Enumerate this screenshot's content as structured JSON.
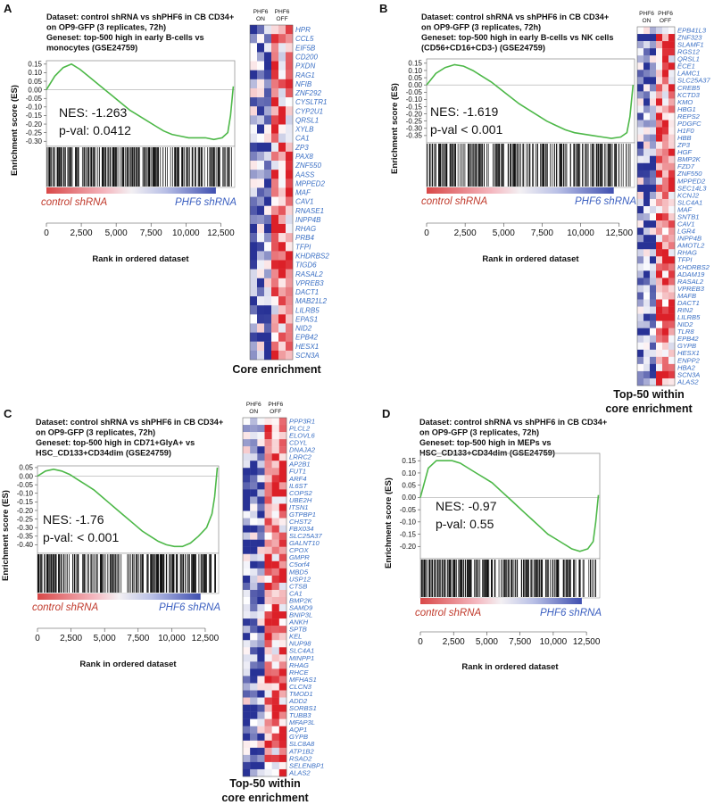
{
  "panels": [
    {
      "letter": "A",
      "title_lines": [
        "Dataset: control shRNA vs shPHF6 in CB CD34+",
        "on OP9-GFP (3 replicates, 72h)",
        "Geneset: top-500 high in early B-cells vs",
        "monocytes (GSE24759)"
      ],
      "ylabel": "Enrichment score (ES)",
      "xlabel": "Rank in ordered dataset",
      "nes_text": "NES: -1.263",
      "pval_text": "p-val: 0.0412",
      "left_label": "control shRNA",
      "right_label": "PHF6 shRNA",
      "heatmap_col_labels": [
        "PHF6\nON",
        "PHF6\nOFF"
      ],
      "heatmap_caption": [
        "Core enrichment"
      ],
      "genes": [
        "HPR",
        "CCL5",
        "EIF5B",
        "CD200",
        "PXDN",
        "RAG1",
        "NFIB",
        "ZNF292",
        "CYSLTR1",
        "CYP2U1",
        "QRSL1",
        "XYLB",
        "CA1",
        "ZP3",
        "PAX8",
        "ZNF550",
        "AASS",
        "MPPED2",
        "MAF",
        "CAV1",
        "RNASE1",
        "INPP4B",
        "RHAG",
        "PRB4",
        "TFPI",
        "KHDRBS2",
        "TIGD6",
        "RASAL2",
        "VPREB3",
        "DACT1",
        "MAB21L2",
        "LILRB5",
        "EPAS1",
        "NID2",
        "EPB42",
        "HESX1",
        "SCN3A"
      ]
    },
    {
      "letter": "B",
      "title_lines": [
        "Dataset: control shRNA vs shPHF6 in CB CD34+",
        "on OP9-GFP (3 replicates, 72h)",
        "Geneset: top-500 high in early B-cells vs NK cells",
        "(CD56+CD16+CD3-) (GSE24759)"
      ],
      "ylabel": "Enrichment score (ES)",
      "xlabel": "Rank in ordered dataset",
      "nes_text": "NES: -1.619",
      "pval_text": "p-val < 0.001",
      "left_label": "control shRNA",
      "right_label": "PHF6 shRNA",
      "heatmap_col_labels": [
        "PHF6\nON",
        "PHF6\nOFF"
      ],
      "heatmap_caption": [
        "Top-50 within",
        "core enrichment"
      ],
      "genes": [
        "EPB41L3",
        "ZNF323",
        "SLAMF1",
        "RGS12",
        "QRSL1",
        "ECE1",
        "LAMC1",
        "SLC25A37",
        "CREB5",
        "KCTD3",
        "KMO",
        "HBG1",
        "REPS2",
        "PDGFC",
        "H1F0",
        "HBB",
        "ZP3",
        "HGF",
        "BMP2K",
        "FZD7",
        "ZNF550",
        "MPPED2",
        "SEC14L3",
        "KCNJ2",
        "SLC4A1",
        "MAF",
        "SNTB1",
        "CAV1",
        "LGR4",
        "INPP4B",
        "AMOTL2",
        "RHAG",
        "TFPI",
        "KHDRBS2",
        "ADAM19",
        "RASAL2",
        "VPREB3",
        "MAFB",
        "DACT1",
        "RIN2",
        "LILRB5",
        "NID2",
        "TLR8",
        "EPB42",
        "GYPB",
        "HESX1",
        "ENPP2",
        "HBA2",
        "SCN3A",
        "ALAS2"
      ]
    },
    {
      "letter": "C",
      "title_lines": [
        "Dataset: control shRNA vs shPHF6 in CB CD34+",
        "on OP9-GFP (3 replicates, 72h)",
        "Geneset: top-500 high in CD71+GlyA+ vs",
        "HSC_CD133+CD34dim (GSE24759)"
      ],
      "ylabel": "Enrichment score (ES)",
      "xlabel": "Rank in ordered dataset",
      "nes_text": "NES: -1.76",
      "pval_text": "p-val: < 0.001",
      "left_label": "control shRNA",
      "right_label": "PHF6 shRNA",
      "heatmap_col_labels": [
        "PHF6\nON",
        "PHF6\nOFF"
      ],
      "heatmap_caption": [
        "Top-50 within",
        "core enrichment"
      ],
      "genes": [
        "PPP3R1",
        "PLCL2",
        "ELOVL6",
        "CDYL",
        "DNAJA2",
        "LRRC2",
        "AP2B1",
        "FUT1",
        "ARF4",
        "IL6ST",
        "COPS2",
        "UBE2H",
        "ITSN1",
        "GTPBP1",
        "CHST2",
        "FBX034",
        "SLC25A37",
        "GALNT10",
        "CPOX",
        "GMPR",
        "C5orf4",
        "MBD5",
        "USP12",
        "CTSB",
        "CA1",
        "BMP2K",
        "SAMD9",
        "BNIP3L",
        "ANKH",
        "SPTB",
        "KEL",
        "NUP98",
        "SLC4A1",
        "MINPP1",
        "RHAG",
        "RHCE",
        "MFHAS1",
        "CLCN3",
        "TMOD1",
        "ADD2",
        "SORBS1",
        "TUBB3",
        "MFAP3L",
        "AQP1",
        "GYPB",
        "SLC8A8",
        "ATP1B2",
        "RSAD2",
        "SELENBP1",
        "ALAS2"
      ]
    },
    {
      "letter": "D",
      "title_lines": [
        "Dataset: control shRNA vs shPHF6 in CB CD34+",
        "on OP9-GFP (3 replicates, 72h)",
        "Geneset: top-500 high in MEPs vs",
        "HSC_CD133+CD34dim (GSE24759)"
      ],
      "ylabel": "Enrichment score (ES)",
      "xlabel": "Rank in ordered dataset",
      "nes_text": "NES: -0.97",
      "pval_text": "p-val: 0.55",
      "left_label": "control shRNA",
      "right_label": "PHF6 shRNA",
      "heatmap_col_labels": [],
      "heatmap_caption": [],
      "genes": []
    }
  ],
  "chart_data": [
    {
      "type": "line",
      "panel": "A",
      "x": [
        0,
        600,
        1200,
        1800,
        2400,
        3000,
        3600,
        4200,
        4800,
        5400,
        6000,
        6600,
        7200,
        7800,
        8400,
        9000,
        9600,
        10200,
        10800,
        11400,
        12000,
        12600,
        13000,
        13200,
        13400
      ],
      "y": [
        0.0,
        0.08,
        0.13,
        0.15,
        0.12,
        0.08,
        0.04,
        0.0,
        -0.04,
        -0.08,
        -0.12,
        -0.15,
        -0.18,
        -0.21,
        -0.24,
        -0.26,
        -0.27,
        -0.28,
        -0.28,
        -0.28,
        -0.29,
        -0.28,
        -0.25,
        -0.15,
        0.02
      ],
      "xlabel": "Rank in ordered dataset",
      "ylabel": "Enrichment score (ES)",
      "xlim": [
        0,
        13500
      ],
      "ylim": [
        -0.33,
        0.17
      ],
      "xticks": [
        0,
        2500,
        5000,
        7500,
        10000,
        12500
      ],
      "xtick_labels": [
        "0",
        "2,500",
        "5,000",
        "7,500",
        "10,000",
        "12,500"
      ],
      "yticks": [
        0.15,
        0.1,
        0.05,
        0.0,
        -0.05,
        -0.1,
        -0.15,
        -0.2,
        -0.25,
        -0.3
      ],
      "ytick_labels": [
        "0.15",
        "0.10",
        "0.05",
        "0.00",
        "-0.05",
        "-0.10",
        "-0.15",
        "-0.20",
        "-0.25",
        "-0.30"
      ],
      "line_color": "#4db848",
      "grid": false
    },
    {
      "type": "line",
      "panel": "B",
      "x": [
        0,
        600,
        1200,
        1800,
        2400,
        3000,
        3600,
        4200,
        4800,
        5400,
        6000,
        6600,
        7200,
        7800,
        8400,
        9000,
        9600,
        10200,
        10800,
        11400,
        12000,
        12600,
        13000,
        13200,
        13400
      ],
      "y": [
        0.0,
        0.08,
        0.12,
        0.14,
        0.13,
        0.1,
        0.06,
        0.02,
        -0.03,
        -0.08,
        -0.13,
        -0.17,
        -0.21,
        -0.25,
        -0.28,
        -0.31,
        -0.33,
        -0.34,
        -0.35,
        -0.36,
        -0.37,
        -0.36,
        -0.33,
        -0.22,
        0.0
      ],
      "xlabel": "Rank in ordered dataset",
      "ylabel": "Enrichment score (ES)",
      "xlim": [
        0,
        13500
      ],
      "ylim": [
        -0.4,
        0.18
      ],
      "xticks": [
        0,
        2500,
        5000,
        7500,
        10000,
        12500
      ],
      "xtick_labels": [
        "0",
        "2,500",
        "5,000",
        "7,500",
        "10,000",
        "12,500"
      ],
      "yticks": [
        0.15,
        0.1,
        0.05,
        0.0,
        -0.05,
        -0.1,
        -0.15,
        -0.2,
        -0.25,
        -0.3,
        -0.35
      ],
      "ytick_labels": [
        "0.15",
        "0.10",
        "0.05",
        "0.00",
        "-0.05",
        "-0.10",
        "-0.15",
        "-0.20",
        "-0.25",
        "-0.30",
        "-0.35"
      ],
      "line_color": "#4db848",
      "grid": false
    },
    {
      "type": "line",
      "panel": "C",
      "x": [
        0,
        600,
        1200,
        1800,
        2400,
        3000,
        3600,
        4200,
        4800,
        5400,
        6000,
        6600,
        7200,
        7800,
        8400,
        9000,
        9600,
        10200,
        10800,
        11400,
        12000,
        12600,
        13000,
        13200,
        13400
      ],
      "y": [
        0.0,
        0.03,
        0.04,
        0.03,
        0.01,
        -0.02,
        -0.05,
        -0.08,
        -0.12,
        -0.16,
        -0.2,
        -0.24,
        -0.28,
        -0.32,
        -0.35,
        -0.38,
        -0.4,
        -0.41,
        -0.41,
        -0.39,
        -0.35,
        -0.3,
        -0.22,
        -0.12,
        0.05
      ],
      "xlabel": "Rank in ordered dataset",
      "ylabel": "Enrichment score (ES)",
      "xlim": [
        0,
        13500
      ],
      "ylim": [
        -0.45,
        0.06
      ],
      "xticks": [
        0,
        2500,
        5000,
        7500,
        10000,
        12500
      ],
      "xtick_labels": [
        "0",
        "2,500",
        "5,000",
        "7,500",
        "10,000",
        "12,500"
      ],
      "yticks": [
        0.05,
        0.0,
        -0.05,
        -0.1,
        -0.15,
        -0.2,
        -0.25,
        -0.3,
        -0.35,
        -0.4
      ],
      "ytick_labels": [
        "0.05",
        "0.00",
        "-0.05",
        "-0.10",
        "-0.15",
        "-0.20",
        "-0.25",
        "-0.30",
        "-0.35",
        "-0.40"
      ],
      "line_color": "#4db848",
      "grid": false
    },
    {
      "type": "line",
      "panel": "D",
      "x": [
        0,
        600,
        1200,
        1800,
        2400,
        3000,
        3600,
        4200,
        4800,
        5400,
        6000,
        6600,
        7200,
        7800,
        8400,
        9000,
        9600,
        10200,
        10800,
        11400,
        12000,
        12600,
        13000,
        13200,
        13400
      ],
      "y": [
        0.0,
        0.12,
        0.15,
        0.15,
        0.15,
        0.14,
        0.12,
        0.1,
        0.08,
        0.06,
        0.03,
        0.0,
        -0.03,
        -0.06,
        -0.09,
        -0.12,
        -0.15,
        -0.17,
        -0.19,
        -0.21,
        -0.22,
        -0.21,
        -0.18,
        -0.1,
        0.01
      ],
      "xlabel": "Rank in ordered dataset",
      "ylabel": "Enrichment score (ES)",
      "xlim": [
        0,
        13500
      ],
      "ylim": [
        -0.25,
        0.18
      ],
      "xticks": [
        0,
        2500,
        5000,
        7500,
        10000,
        12500
      ],
      "xtick_labels": [
        "0",
        "2,500",
        "5,000",
        "7,500",
        "10,000",
        "12,500"
      ],
      "yticks": [
        0.15,
        0.1,
        0.05,
        0.0,
        -0.05,
        -0.1,
        -0.15,
        -0.2
      ],
      "ytick_labels": [
        "0.15",
        "0.10",
        "0.05",
        "0.00",
        "-0.05",
        "-0.10",
        "-0.15",
        "-0.20"
      ],
      "line_color": "#4db848",
      "grid": false
    }
  ],
  "colors": {
    "es_line": "#4db848",
    "control_label": "#c0392b",
    "phf6_label": "#3b5fc0",
    "gene_label": "#3a6fc4",
    "heat_red": "#e8202a",
    "heat_blue": "#2d3596"
  }
}
